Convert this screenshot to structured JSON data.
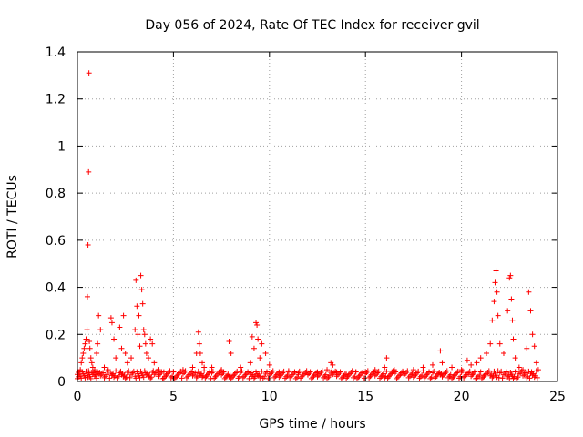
{
  "chart_data": {
    "type": "scatter",
    "title": "Day 056 of 2024, Rate Of TEC Index for receiver gvil",
    "xlabel": "GPS time / hours",
    "ylabel": "ROTI / TECUs",
    "xlim": [
      0,
      25
    ],
    "ylim": [
      0,
      1.4
    ],
    "grid": true,
    "xticks": [
      0,
      5,
      10,
      15,
      20,
      25
    ],
    "xtick_labels": [
      "0",
      "5",
      "10",
      "15",
      "20",
      "25"
    ],
    "yticks": [
      0,
      0.2,
      0.4,
      0.6,
      0.8,
      1,
      1.2,
      1.4
    ],
    "ytick_labels": [
      "0",
      "0.2",
      "0.4",
      "0.6",
      "0.8",
      "1",
      "1.2",
      "1.4"
    ],
    "marker": "+",
    "color": "#ff0000",
    "series": [
      {
        "name": "ROTI",
        "x": [
          0.0,
          0.05,
          0.1,
          0.15,
          0.2,
          0.25,
          0.3,
          0.35,
          0.4,
          0.45,
          0.5,
          0.52,
          0.55,
          0.58,
          0.6,
          0.62,
          0.65,
          0.7,
          0.75,
          0.8,
          0.9,
          1.0,
          1.05,
          1.1,
          1.2,
          1.4,
          1.6,
          1.75,
          1.8,
          1.9,
          2.0,
          2.2,
          2.3,
          2.4,
          2.5,
          2.6,
          2.8,
          3.0,
          3.05,
          3.1,
          3.15,
          3.2,
          3.25,
          3.3,
          3.35,
          3.4,
          3.45,
          3.5,
          3.55,
          3.6,
          3.7,
          3.8,
          3.9,
          4.0,
          4.2,
          4.5,
          5.0,
          5.5,
          6.0,
          6.2,
          6.3,
          6.35,
          6.4,
          6.5,
          6.6,
          7.0,
          7.5,
          7.9,
          8.0,
          8.5,
          9.0,
          9.1,
          9.2,
          9.3,
          9.35,
          9.4,
          9.5,
          9.6,
          9.8,
          10.0,
          10.5,
          11.0,
          11.5,
          12.0,
          12.5,
          13.0,
          13.2,
          13.3,
          13.5,
          14.0,
          14.5,
          15.0,
          15.5,
          16.0,
          16.1,
          16.5,
          17.0,
          17.5,
          18.0,
          18.5,
          18.9,
          19.0,
          19.5,
          20.0,
          20.3,
          20.5,
          20.8,
          21.0,
          21.3,
          21.5,
          21.6,
          21.7,
          21.75,
          21.8,
          21.85,
          21.9,
          22.0,
          22.2,
          22.4,
          22.5,
          22.55,
          22.6,
          22.65,
          22.7,
          22.8,
          23.0,
          23.2,
          23.4,
          23.5,
          23.6,
          23.7,
          23.8,
          23.9,
          24.0
        ],
        "y": [
          0.03,
          0.02,
          0.04,
          0.05,
          0.08,
          0.1,
          0.12,
          0.14,
          0.16,
          0.18,
          0.22,
          0.36,
          0.58,
          0.89,
          1.31,
          0.17,
          0.14,
          0.1,
          0.08,
          0.06,
          0.05,
          0.12,
          0.16,
          0.28,
          0.22,
          0.06,
          0.05,
          0.27,
          0.25,
          0.18,
          0.1,
          0.23,
          0.14,
          0.28,
          0.12,
          0.08,
          0.1,
          0.22,
          0.43,
          0.32,
          0.2,
          0.28,
          0.15,
          0.45,
          0.39,
          0.33,
          0.22,
          0.2,
          0.16,
          0.12,
          0.1,
          0.18,
          0.16,
          0.08,
          0.05,
          0.04,
          0.04,
          0.05,
          0.06,
          0.12,
          0.21,
          0.16,
          0.12,
          0.08,
          0.06,
          0.06,
          0.05,
          0.17,
          0.12,
          0.06,
          0.08,
          0.19,
          0.14,
          0.25,
          0.24,
          0.18,
          0.1,
          0.16,
          0.12,
          0.07,
          0.04,
          0.04,
          0.03,
          0.03,
          0.04,
          0.05,
          0.08,
          0.07,
          0.04,
          0.03,
          0.04,
          0.04,
          0.05,
          0.06,
          0.1,
          0.05,
          0.04,
          0.05,
          0.06,
          0.07,
          0.13,
          0.08,
          0.06,
          0.05,
          0.09,
          0.07,
          0.08,
          0.1,
          0.12,
          0.16,
          0.26,
          0.34,
          0.42,
          0.47,
          0.38,
          0.28,
          0.16,
          0.12,
          0.3,
          0.44,
          0.45,
          0.35,
          0.26,
          0.18,
          0.1,
          0.06,
          0.05,
          0.14,
          0.38,
          0.3,
          0.2,
          0.15,
          0.08,
          0.05
        ]
      }
    ]
  }
}
